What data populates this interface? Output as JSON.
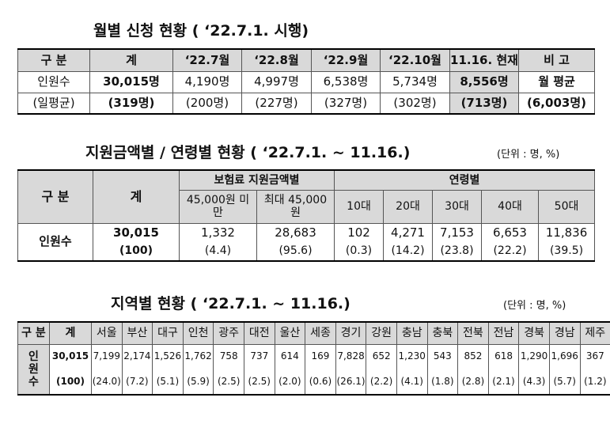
{
  "monthly": {
    "title": "월별 신청 현황 ( ‘22.7.1. 시행)",
    "headers": [
      "구 분",
      "계",
      "‘22.7월",
      "‘22.8월",
      "‘22.9월",
      "‘22.10월",
      "11.16. 현재",
      "비 고"
    ],
    "rows": [
      [
        "인원수",
        "30,015명",
        "4,190명",
        "4,997명",
        "6,538명",
        "5,734명",
        "8,556명",
        "월 평균"
      ],
      [
        "(일평균)",
        "(319명)",
        "(200명)",
        "(227명)",
        "(327명)",
        "(302명)",
        "(713명)",
        "(6,003명)"
      ]
    ]
  },
  "by_amount_age": {
    "title": "지원금액별 / 연령별 현황 ( ‘22.7.1. ~ 11.16.)",
    "unit": "(단위 : 명, %)",
    "label_header": "구 분",
    "total_header": "계",
    "amount_header": "보험료 지원금액별",
    "age_header": "연령별",
    "amount_groups": [
      "45,000원 미만",
      "최대 45,000원"
    ],
    "age_groups": [
      "10대",
      "20대",
      "30대",
      "40대",
      "50대"
    ],
    "row_label": "인원수",
    "counts": [
      "30,015",
      "1,332",
      "28,683",
      "102",
      "4,271",
      "7,153",
      "6,653",
      "11,836"
    ],
    "percents": [
      "(100)",
      "(4.4)",
      "(95.6)",
      "(0.3)",
      "(14.2)",
      "(23.8)",
      "(22.2)",
      "(39.5)"
    ]
  },
  "by_region": {
    "title": "지역별 현황 ( ‘22.7.1. ~ 11.16.)",
    "unit": "(단위 : 명, %)",
    "headers": [
      "구 분",
      "계",
      "서울",
      "부산",
      "대구",
      "인천",
      "광주",
      "대전",
      "울산",
      "세종",
      "경기",
      "강원",
      "충남",
      "충북",
      "전북",
      "전남",
      "경북",
      "경남",
      "제주"
    ],
    "row_label": "인원수",
    "counts": [
      "30,015",
      "7,199",
      "2,174",
      "1,526",
      "1,762",
      "758",
      "737",
      "614",
      "169",
      "7,828",
      "652",
      "1,230",
      "543",
      "852",
      "618",
      "1,290",
      "1,696",
      "367"
    ],
    "percents": [
      "(100)",
      "(24.0)",
      "(7.2)",
      "(5.1)",
      "(5.9)",
      "(2.5)",
      "(2.5)",
      "(2.0)",
      "(0.6)",
      "(26.1)",
      "(2.2)",
      "(4.1)",
      "(1.8)",
      "(2.8)",
      "(2.1)",
      "(4.3)",
      "(5.7)",
      "(1.2)"
    ]
  }
}
